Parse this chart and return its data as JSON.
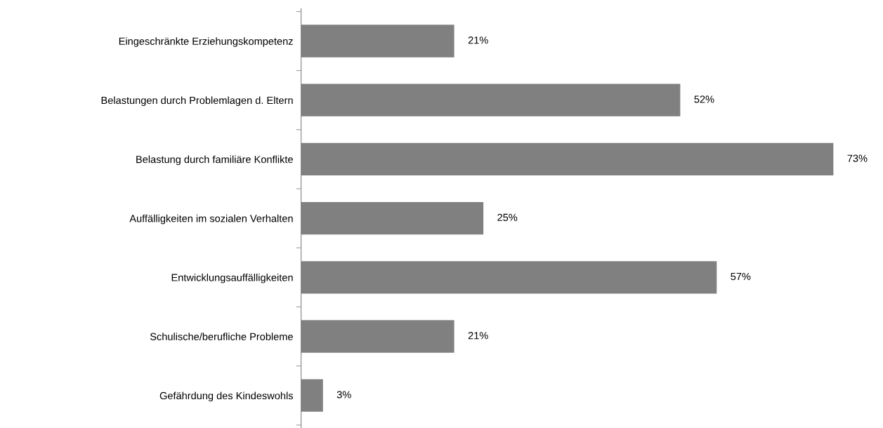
{
  "chart_data": {
    "type": "bar",
    "orientation": "horizontal",
    "categories": [
      "Eingeschränkte Erziehungskompetenz",
      "Belastungen durch Problemlagen d. Eltern",
      "Belastung durch familiäre Konflikte",
      "Auffälligkeiten im sozialen Verhalten",
      "Entwicklungsauffälligkeiten",
      "Schulische/berufliche Probleme",
      "Gefährdung des Kindeswohls"
    ],
    "values": [
      21,
      52,
      73,
      25,
      57,
      21,
      3
    ],
    "value_labels": [
      "21%",
      "52%",
      "73%",
      "25%",
      "57%",
      "21%",
      "3%"
    ],
    "color": "#808080",
    "grid": false,
    "legend": false,
    "tick_labels": "y"
  }
}
